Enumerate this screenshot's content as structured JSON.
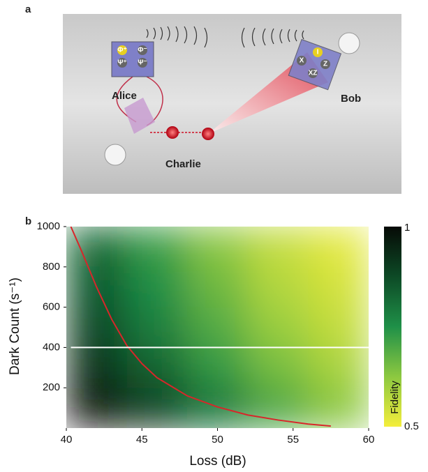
{
  "panel_a": {
    "label": "a",
    "alice": "Alice",
    "bob": "Bob",
    "charlie": "Charlie",
    "alice_box": [
      "Φ⁺",
      "Φ⁻",
      "Ψ⁺",
      "Ψ⁻"
    ],
    "bob_box": [
      "I",
      "X",
      "Z",
      "XZ"
    ]
  },
  "chart_data": {
    "type": "heatmap",
    "label": "b",
    "x_label": "Loss (dB)",
    "y_label": "Dark Count (s⁻¹)",
    "colorbar_label": "Fidelity",
    "xlim": [
      40,
      60
    ],
    "ylim": [
      0,
      1000
    ],
    "xticks": [
      40,
      45,
      50,
      55,
      60
    ],
    "yticks": [
      200,
      400,
      600,
      800,
      1000
    ],
    "clim": [
      0.5,
      1
    ],
    "cticks": [
      0.5,
      1
    ],
    "colormap": [
      "#f4ee3c",
      "#8cc840",
      "#1f9048",
      "#0d4a26",
      "#060a06"
    ],
    "x_edges": [
      40,
      44,
      48,
      52,
      56,
      60
    ],
    "y_edges": [
      0,
      200,
      400,
      600,
      800,
      1000
    ],
    "z": [
      [
        0.97,
        0.9,
        0.8,
        0.7,
        0.63
      ],
      [
        0.92,
        0.83,
        0.73,
        0.65,
        0.59
      ],
      [
        0.88,
        0.78,
        0.69,
        0.61,
        0.56
      ],
      [
        0.85,
        0.75,
        0.66,
        0.58,
        0.54
      ],
      [
        0.82,
        0.72,
        0.63,
        0.56,
        0.52
      ]
    ],
    "series": [
      {
        "color": "#d8262a",
        "x": [
          40.3,
          41,
          42,
          43,
          44,
          45,
          46,
          48,
          50,
          52,
          54,
          56,
          57.5
        ],
        "values": [
          1000,
          880,
          700,
          540,
          410,
          320,
          250,
          160,
          105,
          65,
          40,
          20,
          10
        ]
      },
      {
        "color": "#ffffff",
        "x": [
          40.3,
          60
        ],
        "values": [
          400,
          400
        ]
      }
    ]
  }
}
